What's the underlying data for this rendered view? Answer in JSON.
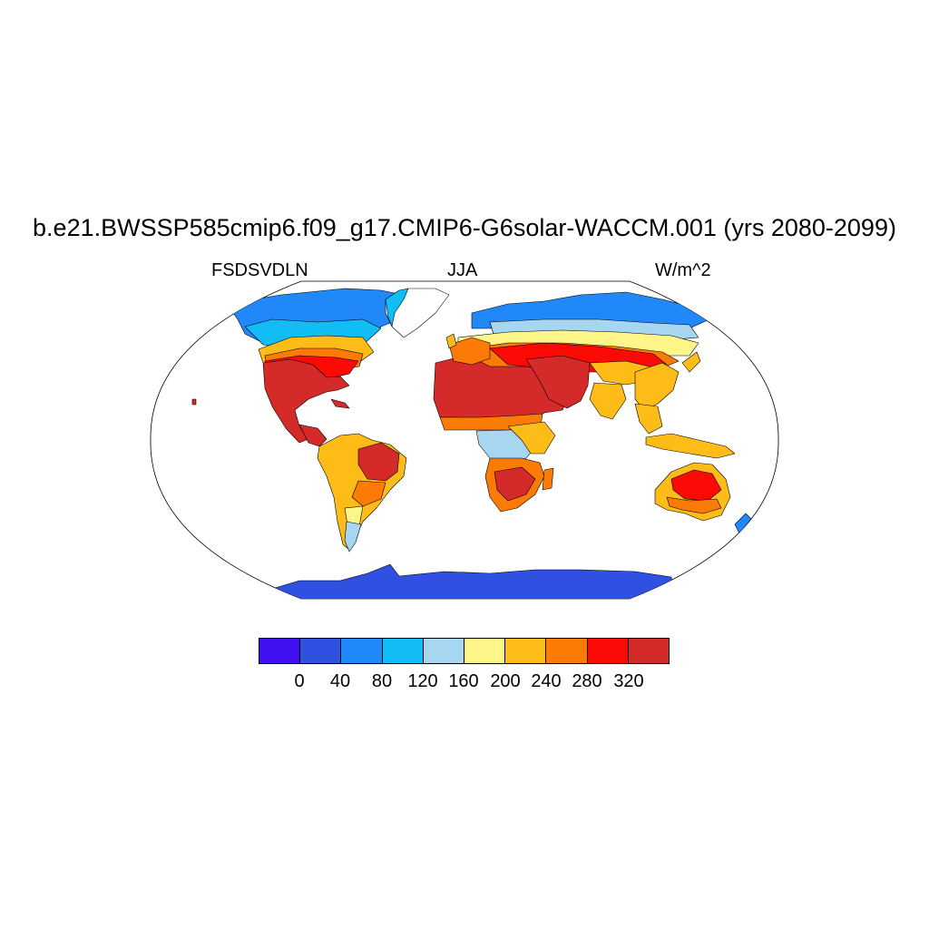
{
  "title": "b.e21.BWSSP585cmip6.f09_g17.CMIP6-G6solar-WACCM.001 (yrs 2080-2099)",
  "subtitle_left": "FSDSVDLN",
  "subtitle_center": "JJA",
  "subtitle_right": "W/m^2",
  "colorbar": {
    "colors": [
      "#4010f0",
      "#2f50e0",
      "#2088f8",
      "#12bcf5",
      "#a6d6f0",
      "#fff68a",
      "#fdbc18",
      "#fc7a06",
      "#fb0a06",
      "#d42a2a"
    ],
    "tick_labels": [
      "0",
      "40",
      "80",
      "120",
      "160",
      "200",
      "240",
      "280",
      "320"
    ]
  },
  "chart_data": {
    "type": "heatmap",
    "variable": "FSDSVDLN",
    "season": "JJA",
    "units": "W/m^2",
    "contour_levels": [
      0,
      40,
      80,
      120,
      160,
      200,
      240,
      280,
      320
    ],
    "projection": "Robinson",
    "regions": [
      {
        "region": "Antarctica",
        "bin": "0-40"
      },
      {
        "region": "Arctic coasts, Greenland margin",
        "bin": "80-120"
      },
      {
        "region": "Canada",
        "bin": "120-200"
      },
      {
        "region": "Southwest USA and Mexico",
        "bin": ">320"
      },
      {
        "region": "Eastern USA",
        "bin": "240-320"
      },
      {
        "region": "Amazon",
        "bin": "160-240"
      },
      {
        "region": "Brazilian Highlands",
        "bin": "280-320"
      },
      {
        "region": "Patagonia",
        "bin": "80-160"
      },
      {
        "region": "Sahara and Arabia",
        "bin": ">320"
      },
      {
        "region": "Sahel",
        "bin": "240-320"
      },
      {
        "region": "Equatorial Africa",
        "bin": "120-200"
      },
      {
        "region": "Southern Africa",
        "bin": "280-320"
      },
      {
        "region": "Northern Eurasia",
        "bin": "120-200"
      },
      {
        "region": "Central Asia",
        "bin": "280-320"
      },
      {
        "region": "Tibetan Plateau",
        "bin": "200-280"
      },
      {
        "region": "Southeast Asia",
        "bin": "160-240"
      },
      {
        "region": "Australia interior",
        "bin": "280-320"
      },
      {
        "region": "Southern Australia",
        "bin": "200-240"
      }
    ]
  }
}
